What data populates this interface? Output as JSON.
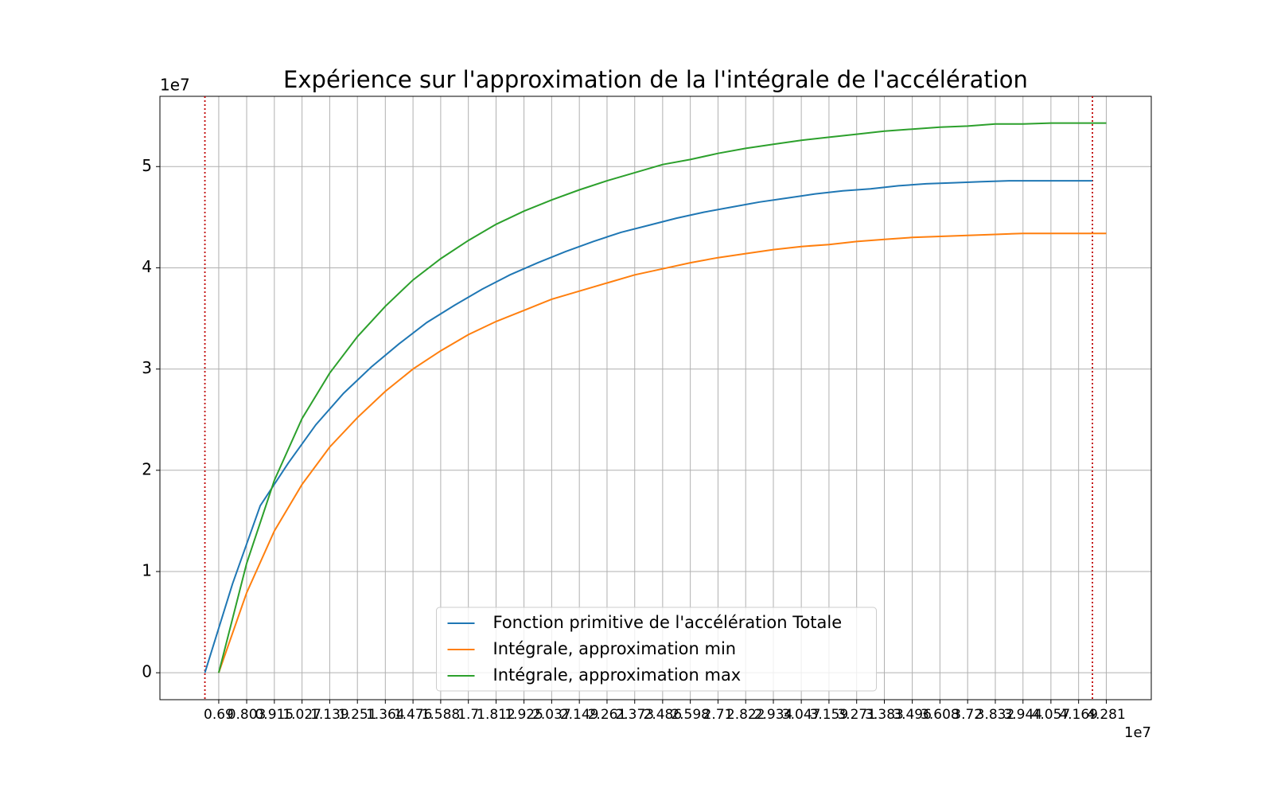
{
  "chart_data": {
    "type": "line",
    "title": "Expérience sur l'approximation de la l'intégrale de l'accélération",
    "x_offset_label": "1e7",
    "y_offset_label": "1e7",
    "xlim": [
      0.452,
      4.463
    ],
    "ylim": [
      -0.266,
      5.694
    ],
    "xticks": [
      0.69,
      0.803,
      0.915,
      1.027,
      1.139,
      1.251,
      1.364,
      1.476,
      1.588,
      1.7,
      1.812,
      1.925,
      2.037,
      2.149,
      2.261,
      2.373,
      2.486,
      2.598,
      2.71,
      2.822,
      2.934,
      3.047,
      3.159,
      3.271,
      3.383,
      3.496,
      3.608,
      3.72,
      3.832,
      3.944,
      4.057,
      4.169,
      4.281
    ],
    "yticks": [
      0,
      1,
      2,
      3,
      4,
      5
    ],
    "grid": true,
    "legend": "lower center",
    "vlines": {
      "color": "#c00000",
      "values": [
        0.634,
        4.225
      ]
    },
    "series": [
      {
        "name": "Fonction primitive de l'accélération Totale",
        "color": "#1f77b4",
        "x": [
          0.634,
          0.746,
          0.858,
          0.971,
          1.083,
          1.195,
          1.307,
          1.42,
          1.532,
          1.644,
          1.756,
          1.868,
          1.981,
          2.093,
          2.205,
          2.317,
          2.43,
          2.542,
          2.654,
          2.766,
          2.878,
          2.991,
          3.103,
          3.215,
          3.327,
          3.44,
          3.552,
          3.664,
          3.776,
          3.888,
          4.001,
          4.113,
          4.225
        ],
        "values": [
          0,
          0.88,
          1.65,
          2.07,
          2.45,
          2.76,
          3.02,
          3.25,
          3.46,
          3.63,
          3.79,
          3.93,
          4.05,
          4.16,
          4.26,
          4.35,
          4.42,
          4.49,
          4.55,
          4.6,
          4.65,
          4.69,
          4.73,
          4.76,
          4.78,
          4.81,
          4.83,
          4.84,
          4.85,
          4.86,
          4.86,
          4.86,
          4.86
        ]
      },
      {
        "name": "Intégrale, approximation min",
        "color": "#ff7f0e",
        "x": [
          0.69,
          0.803,
          0.915,
          1.027,
          1.139,
          1.251,
          1.364,
          1.476,
          1.588,
          1.7,
          1.812,
          1.925,
          2.037,
          2.149,
          2.261,
          2.373,
          2.486,
          2.598,
          2.71,
          2.822,
          2.934,
          3.047,
          3.159,
          3.271,
          3.383,
          3.496,
          3.608,
          3.72,
          3.832,
          3.944,
          4.057,
          4.169,
          4.281
        ],
        "values": [
          0,
          0.79,
          1.4,
          1.86,
          2.23,
          2.52,
          2.78,
          3.0,
          3.18,
          3.34,
          3.47,
          3.58,
          3.69,
          3.77,
          3.85,
          3.93,
          3.99,
          4.05,
          4.1,
          4.14,
          4.18,
          4.21,
          4.23,
          4.26,
          4.28,
          4.3,
          4.31,
          4.32,
          4.33,
          4.34,
          4.34,
          4.34,
          4.34
        ]
      },
      {
        "name": "Intégrale, approximation max",
        "color": "#2ca02c",
        "x": [
          0.69,
          0.803,
          0.915,
          1.027,
          1.139,
          1.251,
          1.364,
          1.476,
          1.588,
          1.7,
          1.812,
          1.925,
          2.037,
          2.149,
          2.261,
          2.373,
          2.486,
          2.598,
          2.71,
          2.822,
          2.934,
          3.047,
          3.159,
          3.271,
          3.383,
          3.496,
          3.608,
          3.72,
          3.832,
          3.944,
          4.057,
          4.169,
          4.281
        ],
        "values": [
          0,
          1.08,
          1.9,
          2.51,
          2.96,
          3.32,
          3.62,
          3.88,
          4.09,
          4.27,
          4.43,
          4.56,
          4.67,
          4.77,
          4.86,
          4.94,
          5.02,
          5.07,
          5.13,
          5.18,
          5.22,
          5.26,
          5.29,
          5.32,
          5.35,
          5.37,
          5.39,
          5.4,
          5.42,
          5.42,
          5.43,
          5.43,
          5.43
        ]
      }
    ]
  }
}
